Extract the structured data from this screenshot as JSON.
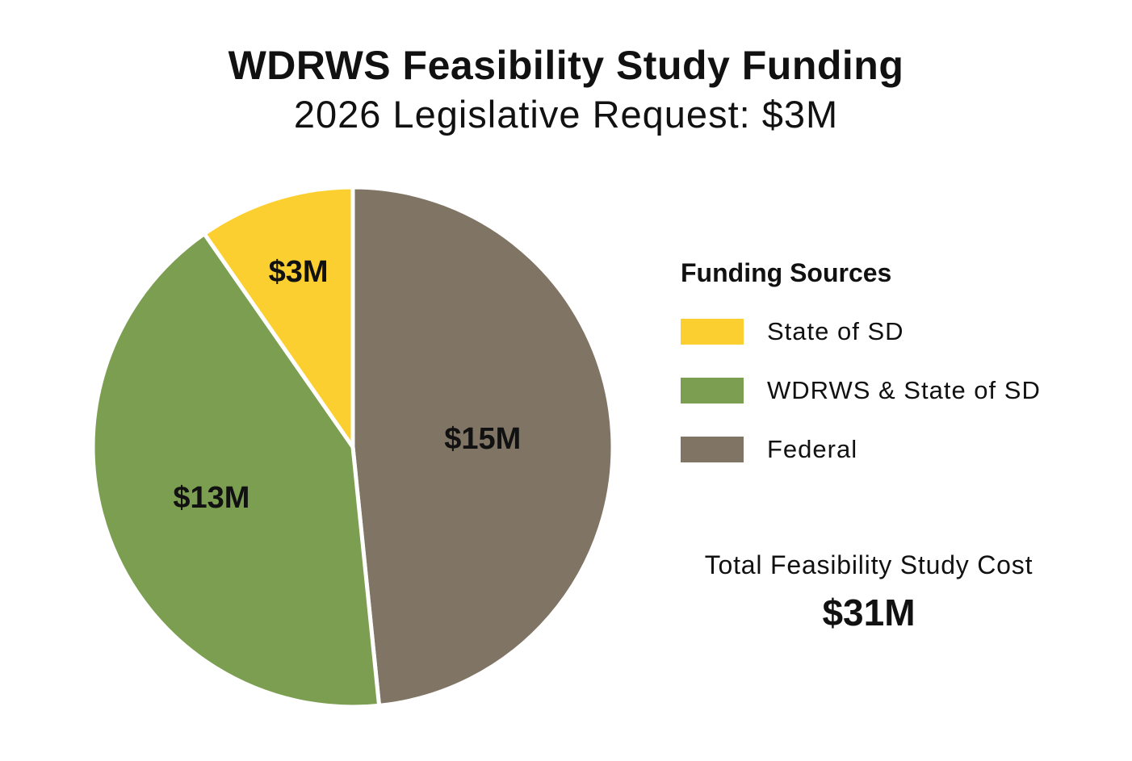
{
  "chart_data": {
    "type": "pie",
    "title": "WDRWS Feasibility Study Funding",
    "subtitle": "2026 Legislative Request: $3M",
    "unit": "$M",
    "slices": [
      {
        "name": "State of SD",
        "value": 3,
        "label": "$3M",
        "color": "#fccf31"
      },
      {
        "name": "WDRWS & State of SD",
        "value": 13,
        "label": "$13M",
        "color": "#7b9e50"
      },
      {
        "name": "Federal",
        "value": 15,
        "label": "$15M",
        "color": "#807464"
      }
    ],
    "legend": {
      "title": "Funding Sources",
      "placement": "right"
    },
    "total": {
      "label": "Total Feasibility Study Cost",
      "value": "$31M"
    }
  }
}
